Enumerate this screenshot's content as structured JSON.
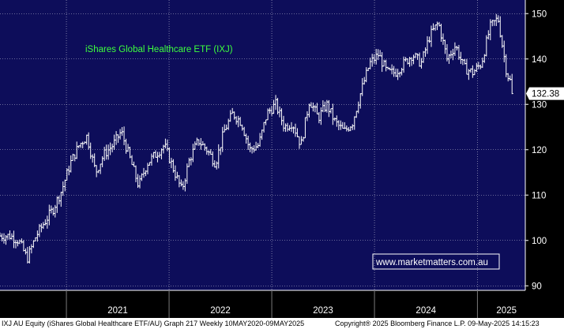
{
  "colors": {
    "plot_background": "#0d0d5a",
    "axis_background": "#000000",
    "price_bars": "#ffffff",
    "grid": "#ffffff",
    "title_text": "#3dff3d",
    "watermark_border": "#ffffff",
    "watermark_text": "#ffffff",
    "last_price_label_bg": "#ffffff",
    "last_price_label_text": "#000000"
  },
  "watermark": "www.marketmatters.com.au",
  "footer": {
    "left": "IXJ AU Equity (iShares Global Healthcare ETF/AU) Graph 217  Weekly 10MAY2020-09MAY2025",
    "right": "Copyright® 2025 Bloomberg Finance L.P.    09-May-2025 14:15:23"
  },
  "chart_data": {
    "type": "bar",
    "title": "iShares Global Healthcare ETF (IXJ)",
    "frequency": "Weekly",
    "x_range": [
      "2020-05-10",
      "2025-05-09"
    ],
    "x_tick_labels": [
      "2021",
      "2022",
      "2023",
      "2024",
      "2025"
    ],
    "y_tick_labels": [
      "90",
      "100",
      "110",
      "120",
      "130",
      "140",
      "150"
    ],
    "ylim": [
      89,
      153
    ],
    "grid": true,
    "last_price": 132.38,
    "series": [
      {
        "x": [
          "2020-06",
          "2020-07",
          "2020-08",
          "2020-09",
          "2020-10",
          "2020-11",
          "2020-12",
          "2021-01",
          "2021-02",
          "2021-03",
          "2021-04",
          "2021-05",
          "2021-06",
          "2021-07",
          "2021-08",
          "2021-09",
          "2021-10",
          "2021-11",
          "2021-12",
          "2022-01",
          "2022-02",
          "2022-03",
          "2022-04",
          "2022-05",
          "2022-06",
          "2022-07",
          "2022-08",
          "2022-09",
          "2022-10",
          "2022-11",
          "2022-12",
          "2023-01",
          "2023-02",
          "2023-03",
          "2023-04",
          "2023-05",
          "2023-06",
          "2023-07",
          "2023-08",
          "2023-09",
          "2023-10",
          "2023-11",
          "2023-12",
          "2024-01",
          "2024-02",
          "2024-03",
          "2024-04",
          "2024-05",
          "2024-06",
          "2024-07",
          "2024-08",
          "2024-09",
          "2024-10",
          "2024-11",
          "2024-12",
          "2025-01",
          "2025-02",
          "2025-03",
          "2025-04",
          "2025-05"
        ],
        "values": [
          101,
          100,
          96,
          101,
          104,
          107,
          111,
          117,
          121,
          123,
          115,
          119,
          121,
          124,
          118,
          112,
          117,
          119,
          121,
          116,
          111,
          118,
          122,
          120,
          117,
          124,
          128,
          126,
          120,
          121,
          128,
          130,
          125,
          126,
          121,
          131,
          127,
          130,
          126,
          124,
          126,
          133,
          139,
          141,
          137,
          137,
          139,
          141,
          139,
          145,
          148,
          140,
          143,
          138,
          137,
          139,
          147,
          149,
          137,
          132.38
        ]
      }
    ]
  }
}
